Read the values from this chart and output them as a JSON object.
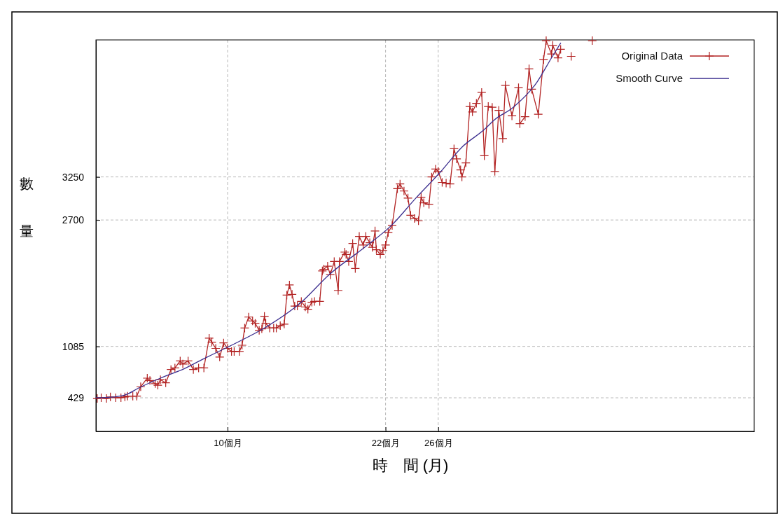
{
  "chart_data": {
    "type": "line",
    "xlabel": "時　間 (月)",
    "ylabel": "數量",
    "xlim": [
      0,
      50
    ],
    "xticks": [
      {
        "value": 10,
        "label": "10個月"
      },
      {
        "value": 22,
        "label": "22個月"
      },
      {
        "value": 26,
        "label": "26個月"
      }
    ],
    "ylim": [
      0,
      5000
    ],
    "yticks": [
      429,
      1085,
      2700,
      3250
    ],
    "grid": true,
    "legend": "top right",
    "line_style": "solid",
    "series": [
      {
        "name": "Original Data",
        "color": "#b22222",
        "marker": "cross",
        "x": [
          0.1,
          0.4,
          0.8,
          1.1,
          1.5,
          1.9,
          2.2,
          2.4,
          2.8,
          3.1,
          3.4,
          3.9,
          4.1,
          4.5,
          4.7,
          4.9,
          5.3,
          5.7,
          6.0,
          6.4,
          6.6,
          7.0,
          7.4,
          7.8,
          8.2,
          8.6,
          8.8,
          9.1,
          9.4,
          9.7,
          10.0,
          10.3,
          10.5,
          10.9,
          11.1,
          11.3,
          11.6,
          11.9,
          12.1,
          12.4,
          12.6,
          12.8,
          12.9,
          13.2,
          13.5,
          13.7,
          14.0,
          14.3,
          14.5,
          14.7,
          14.9,
          15.1,
          15.3,
          15.6,
          15.9,
          16.1,
          16.4,
          16.6,
          17.0,
          17.2,
          17.3,
          17.6,
          17.8,
          18.1,
          18.4,
          18.5,
          18.9,
          19.0,
          19.2,
          19.5,
          19.7,
          20.0,
          20.3,
          20.5,
          20.8,
          21.0,
          21.2,
          21.3,
          21.6,
          21.8,
          22.0,
          22.2,
          22.5,
          22.9,
          23.1,
          23.4,
          23.7,
          23.9,
          24.2,
          24.5,
          24.7,
          24.9,
          25.3,
          25.5,
          25.8,
          26.0,
          26.3,
          26.6,
          26.9,
          27.2,
          27.4,
          27.7,
          27.8,
          28.1,
          28.4,
          28.6,
          28.9,
          29.3,
          29.5,
          29.8,
          30.1,
          30.3,
          30.6,
          30.9,
          31.1,
          31.6,
          32.1,
          32.2,
          32.6,
          32.9,
          33.1,
          33.6,
          34.0,
          34.2,
          34.6,
          34.7,
          35.1,
          35.3,
          35.6,
          36.1,
          36.9,
          37.7
        ],
        "values": [
          420,
          430,
          420,
          440,
          430,
          430,
          440,
          450,
          450,
          450,
          570,
          680,
          650,
          610,
          590,
          660,
          620,
          790,
          810,
          900,
          860,
          900,
          790,
          810,
          810,
          1190,
          1140,
          1060,
          950,
          1130,
          1060,
          1020,
          1020,
          1020,
          1100,
          1320,
          1460,
          1410,
          1380,
          1290,
          1310,
          1470,
          1380,
          1320,
          1320,
          1320,
          1350,
          1370,
          1740,
          1870,
          1750,
          1600,
          1600,
          1660,
          1590,
          1560,
          1650,
          1660,
          1660,
          2050,
          2070,
          2110,
          2000,
          2170,
          1800,
          2170,
          2290,
          2260,
          2170,
          2400,
          2080,
          2490,
          2380,
          2490,
          2410,
          2350,
          2560,
          2320,
          2260,
          2310,
          2380,
          2540,
          2630,
          3100,
          3160,
          3070,
          2980,
          2760,
          2720,
          2690,
          2990,
          2920,
          2900,
          3250,
          3350,
          3320,
          3180,
          3170,
          3160,
          3610,
          3480,
          3340,
          3250,
          3430,
          4150,
          4080,
          4190,
          4330,
          3520,
          4150,
          4140,
          3320,
          4100,
          3740,
          4420,
          4030,
          4390,
          3930,
          4020,
          4630,
          4370,
          4050,
          4750,
          4990,
          4820,
          4930,
          4770,
          4880,
          null,
          4790,
          null,
          4990
        ]
      },
      {
        "name": "Smooth Curve",
        "color": "#3c2f8f",
        "marker": "none",
        "x": [
          0,
          1.4,
          2.3,
          3.2,
          4.9,
          6.7,
          8.1,
          10.3,
          12.9,
          15.6,
          17.7,
          20.4,
          22.5,
          24.3,
          26.1,
          27.8,
          29.6,
          30.2,
          31.7,
          33.5,
          34.6,
          35.3
        ],
        "values": [
          430,
          440,
          470,
          550,
          680,
          800,
          920,
          1100,
          1330,
          1650,
          2000,
          2350,
          2640,
          2980,
          3300,
          3630,
          3870,
          3970,
          4140,
          4460,
          4770,
          4960
        ]
      }
    ]
  }
}
